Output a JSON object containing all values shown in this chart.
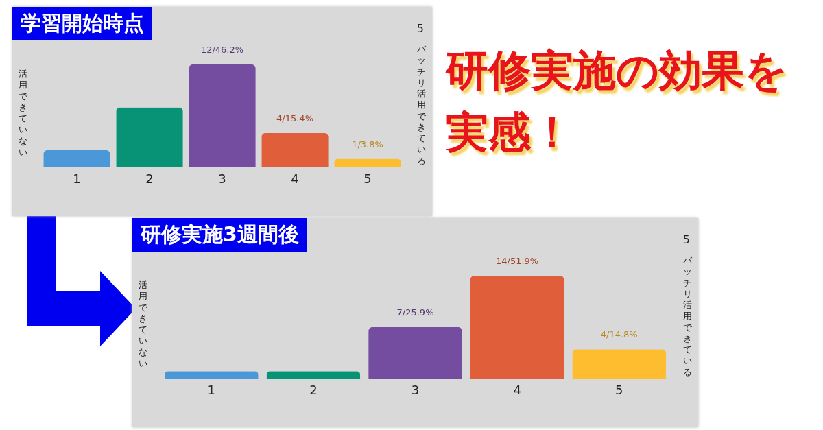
{
  "chart_data": [
    {
      "type": "bar",
      "title": "学習開始時点",
      "categories": [
        "1",
        "2",
        "3",
        "4",
        "5"
      ],
      "values": [
        2,
        7,
        12,
        4,
        1
      ],
      "colors": [
        "#4a98d8",
        "#089276",
        "#744ca0",
        "#e05e3a",
        "#fdbd2e"
      ],
      "value_labels": [
        null,
        null,
        "12/46.2%",
        "4/15.4%",
        "1/3.8%"
      ],
      "annotations": [
        "活用できていない",
        "5",
        "バッチリ活用できている"
      ]
    },
    {
      "type": "bar",
      "title": "研修実施3週間後",
      "categories": [
        "1",
        "2",
        "3",
        "4",
        "5"
      ],
      "values": [
        1,
        1,
        7,
        14,
        4
      ],
      "colors": [
        "#4a98d8",
        "#089276",
        "#744ca0",
        "#e05e3a",
        "#fdbd2e"
      ],
      "value_labels": [
        null,
        null,
        "7/25.9%",
        "14/51.9%",
        "4/14.8%"
      ],
      "annotations": [
        "活用できていない",
        "5",
        "バッチリ活用できている"
      ]
    },
    {
      "type": "other",
      "title": "研修実施の効果を実感！"
    }
  ]
}
